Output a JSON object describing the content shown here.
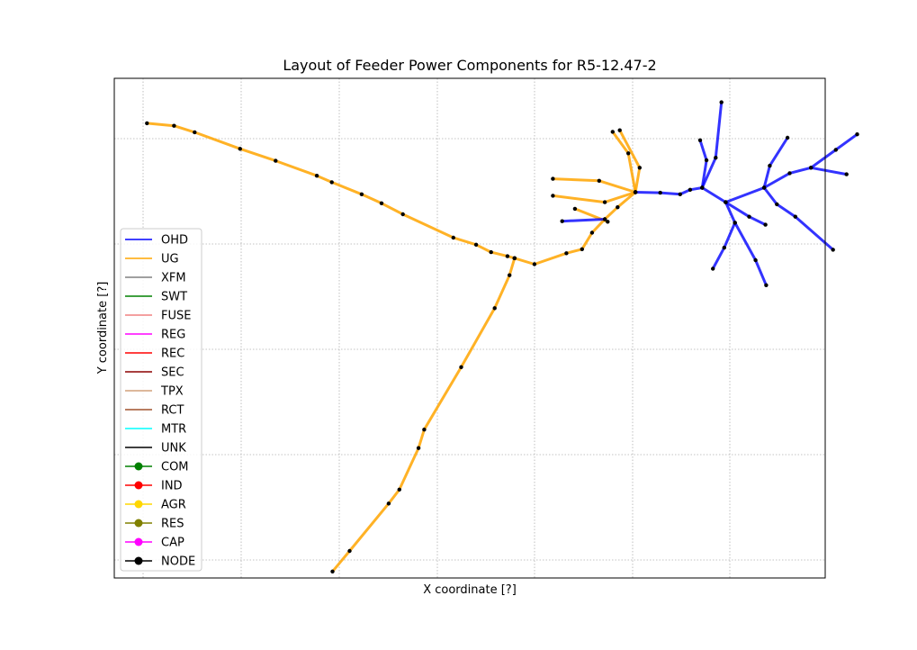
{
  "chart_data": {
    "type": "line",
    "title": "Layout of Feeder Power Components for R5-12.47-2",
    "xlabel": "X coordinate [?]",
    "ylabel": "Y coordinate [?]",
    "xlim": [
      0,
      100
    ],
    "ylim": [
      0,
      100
    ],
    "grid": true,
    "tick_labels_shown": false,
    "legend_position": "center-left",
    "legend": [
      {
        "label": "OHD",
        "color": "#0000ff",
        "kind": "line"
      },
      {
        "label": "UG",
        "color": "#ffa500",
        "kind": "line"
      },
      {
        "label": "XFM",
        "color": "#808080",
        "kind": "line"
      },
      {
        "label": "SWT",
        "color": "#008000",
        "kind": "line"
      },
      {
        "label": "FUSE",
        "color": "#f08080",
        "kind": "line"
      },
      {
        "label": "REG",
        "color": "#ff00ff",
        "kind": "line"
      },
      {
        "label": "REC",
        "color": "#ff0000",
        "kind": "line"
      },
      {
        "label": "SEC",
        "color": "#8b0000",
        "kind": "line"
      },
      {
        "label": "TPX",
        "color": "#d2a07a",
        "kind": "line"
      },
      {
        "label": "RCT",
        "color": "#a0522d",
        "kind": "line"
      },
      {
        "label": "MTR",
        "color": "#00ffff",
        "kind": "line"
      },
      {
        "label": "UNK",
        "color": "#000000",
        "kind": "line"
      },
      {
        "label": "COM",
        "color": "#008000",
        "kind": "marker"
      },
      {
        "label": "IND",
        "color": "#ff0000",
        "kind": "marker"
      },
      {
        "label": "AGR",
        "color": "#ffd700",
        "kind": "marker"
      },
      {
        "label": "RES",
        "color": "#808000",
        "kind": "marker"
      },
      {
        "label": "CAP",
        "color": "#ff00ff",
        "kind": "marker"
      },
      {
        "label": "NODE",
        "color": "#000000",
        "kind": "marker"
      }
    ],
    "series": [
      {
        "type": "UG",
        "color": "#ffa500",
        "points": [
          [
            4.6,
            91
          ],
          [
            8.4,
            90.5
          ],
          [
            11.3,
            89.2
          ],
          [
            17.7,
            85.9
          ],
          [
            22.7,
            83.5
          ],
          [
            28.5,
            80.5
          ],
          [
            30.6,
            79.2
          ],
          [
            34.8,
            76.8
          ],
          [
            37.6,
            75
          ],
          [
            40.6,
            72.8
          ],
          [
            47.7,
            68.1
          ],
          [
            50.9,
            66.7
          ],
          [
            53,
            65.2
          ],
          [
            55.3,
            64.4
          ],
          [
            56.3,
            64
          ]
        ]
      },
      {
        "type": "UG",
        "color": "#ffa500",
        "points": [
          [
            56.3,
            64
          ],
          [
            59.1,
            62.8
          ],
          [
            63.6,
            65
          ],
          [
            65.8,
            65.8
          ],
          [
            67.2,
            69.1
          ],
          [
            69,
            71.8
          ],
          [
            70.8,
            74.2
          ],
          [
            73.3,
            77.2
          ]
        ]
      },
      {
        "type": "UG",
        "color": "#ffa500",
        "points": [
          [
            56.3,
            64
          ],
          [
            55.6,
            60.6
          ],
          [
            53.5,
            54
          ],
          [
            48.8,
            42.2
          ],
          [
            43.6,
            29.7
          ],
          [
            42.8,
            26
          ],
          [
            40.1,
            17.7
          ],
          [
            38.6,
            14.9
          ],
          [
            33.1,
            5.4
          ],
          [
            30.7,
            1.3
          ]
        ]
      },
      {
        "type": "UG",
        "color": "#ffa500",
        "points": [
          [
            73.3,
            77.2
          ],
          [
            73.9,
            82.1
          ],
          [
            71.1,
            89.6
          ]
        ]
      },
      {
        "type": "UG",
        "color": "#ffa500",
        "points": [
          [
            73.3,
            77.2
          ],
          [
            72.3,
            85
          ],
          [
            70.1,
            89.3
          ]
        ]
      },
      {
        "type": "UG",
        "color": "#ffa500",
        "points": [
          [
            73.3,
            77.2
          ],
          [
            69,
            75.2
          ],
          [
            61.7,
            76.5
          ]
        ]
      },
      {
        "type": "UG",
        "color": "#ffa500",
        "points": [
          [
            73.3,
            77.2
          ],
          [
            68.2,
            79.5
          ],
          [
            61.7,
            79.9
          ]
        ]
      },
      {
        "type": "UG",
        "color": "#ffa500",
        "points": [
          [
            69.4,
            71.3
          ],
          [
            64.8,
            73.9
          ]
        ]
      },
      {
        "type": "OHD",
        "color": "#0000ff",
        "points": [
          [
            73.3,
            77.2
          ],
          [
            76.8,
            77.1
          ],
          [
            79.6,
            76.8
          ],
          [
            81,
            77.7
          ],
          [
            82.7,
            78.1
          ]
        ]
      },
      {
        "type": "OHD",
        "color": "#0000ff",
        "points": [
          [
            69,
            71.8
          ],
          [
            63,
            71.4
          ]
        ]
      },
      {
        "type": "OHD",
        "color": "#0000ff",
        "points": [
          [
            82.7,
            78.1
          ],
          [
            83.3,
            83.6
          ],
          [
            82.4,
            87.6
          ]
        ]
      },
      {
        "type": "OHD",
        "color": "#0000ff",
        "points": [
          [
            82.7,
            78.1
          ],
          [
            84.6,
            84.1
          ],
          [
            85.4,
            95.2
          ]
        ]
      },
      {
        "type": "OHD",
        "color": "#0000ff",
        "points": [
          [
            82.7,
            78.1
          ],
          [
            86,
            75.2
          ],
          [
            87.3,
            71.1
          ],
          [
            85.8,
            66.1
          ],
          [
            84.2,
            61.9
          ]
        ]
      },
      {
        "type": "OHD",
        "color": "#0000ff",
        "points": [
          [
            86,
            75.2
          ],
          [
            89.3,
            72.3
          ],
          [
            91.6,
            70.7
          ]
        ]
      },
      {
        "type": "OHD",
        "color": "#0000ff",
        "points": [
          [
            86,
            75.2
          ],
          [
            91.4,
            78.1
          ],
          [
            95,
            81
          ],
          [
            98,
            82.1
          ],
          [
            103,
            80.8
          ]
        ]
      },
      {
        "type": "OHD",
        "color": "#0000ff",
        "points": [
          [
            91.4,
            78.1
          ],
          [
            93.2,
            74.8
          ],
          [
            95.8,
            72.3
          ],
          [
            101.1,
            65.7
          ]
        ]
      },
      {
        "type": "OHD",
        "color": "#0000ff",
        "points": [
          [
            91.4,
            78.1
          ],
          [
            92.2,
            82.5
          ],
          [
            94.7,
            88.1
          ]
        ]
      },
      {
        "type": "OHD",
        "color": "#0000ff",
        "points": [
          [
            98,
            82.1
          ],
          [
            101.5,
            85.7
          ],
          [
            104.5,
            88.8
          ]
        ]
      },
      {
        "type": "OHD",
        "color": "#0000ff",
        "points": [
          [
            87.3,
            71.1
          ],
          [
            90.2,
            63.6
          ],
          [
            91.7,
            58.6
          ]
        ]
      }
    ]
  }
}
